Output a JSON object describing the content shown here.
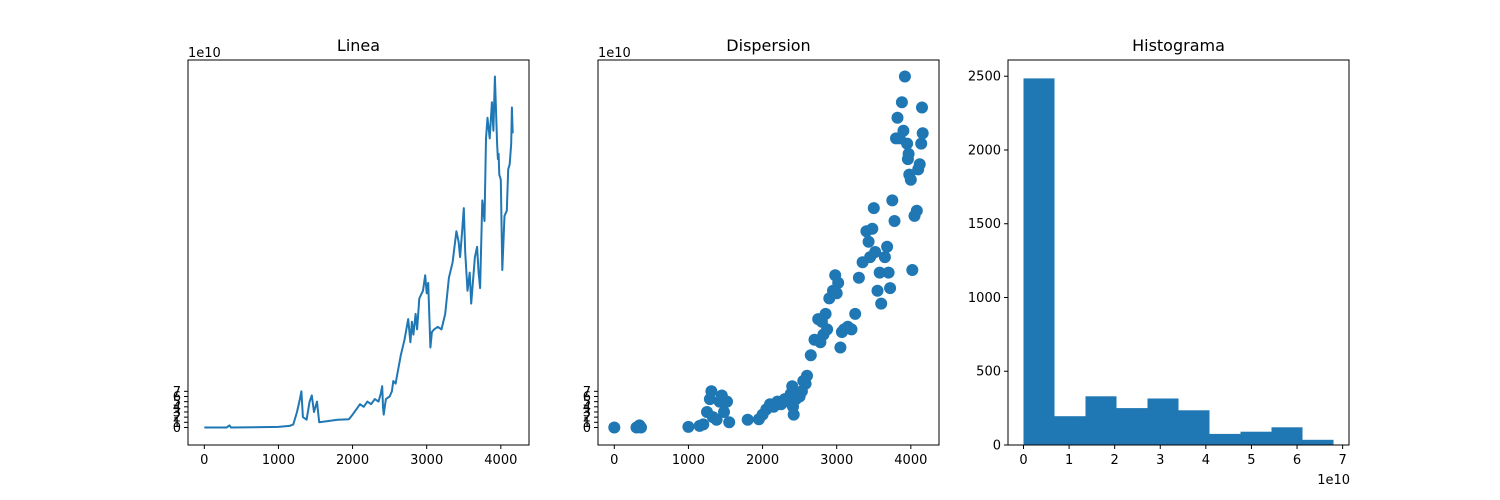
{
  "colors": {
    "series": "#1f77b4",
    "axis": "#000000",
    "background": "#ffffff"
  },
  "chart_data": [
    {
      "type": "line",
      "title": "Linea",
      "xlabel": "",
      "ylabel": "",
      "xlim": [
        -220,
        4380
      ],
      "ylim": [
        -3.4,
        71.2
      ],
      "y_offset_label": "1e10",
      "x_ticks": [
        0,
        1000,
        2000,
        3000,
        4000
      ],
      "y_ticks": [
        0,
        1,
        2,
        3,
        4,
        5,
        6,
        7
      ],
      "grid": false,
      "x": [
        0,
        300,
        340,
        360,
        1000,
        1150,
        1200,
        1250,
        1290,
        1310,
        1330,
        1380,
        1420,
        1450,
        1480,
        1520,
        1550,
        1800,
        1950,
        2000,
        2050,
        2100,
        2150,
        2200,
        2250,
        2300,
        2350,
        2380,
        2400,
        2410,
        2420,
        2450,
        2500,
        2530,
        2550,
        2580,
        2600,
        2650,
        2700,
        2750,
        2780,
        2800,
        2820,
        2850,
        2870,
        2900,
        2950,
        2980,
        3000,
        3020,
        3050,
        3070,
        3100,
        3150,
        3200,
        3250,
        3300,
        3350,
        3400,
        3430,
        3450,
        3480,
        3500,
        3520,
        3550,
        3580,
        3600,
        3650,
        3680,
        3700,
        3720,
        3750,
        3780,
        3800,
        3820,
        3850,
        3880,
        3900,
        3920,
        3950,
        3960,
        3970,
        3980,
        4000,
        4020,
        4050,
        4080,
        4100,
        4120,
        4140,
        4150,
        4160
      ],
      "y": [
        0.0,
        0.0,
        0.4,
        0.0,
        0.1,
        0.3,
        0.6,
        3.0,
        5.5,
        7.0,
        2.0,
        1.5,
        5.0,
        6.2,
        3.0,
        5.0,
        1.0,
        1.5,
        1.6,
        2.5,
        3.5,
        4.5,
        4.0,
        5.0,
        4.5,
        5.5,
        5.0,
        6.5,
        8.0,
        4.0,
        2.5,
        5.5,
        6.0,
        7.0,
        9.0,
        8.5,
        10.0,
        14.0,
        17.0,
        21.0,
        16.5,
        20.5,
        18.0,
        22.0,
        19.0,
        25.0,
        26.5,
        29.5,
        26.0,
        28.0,
        15.5,
        18.5,
        19.0,
        19.5,
        19.0,
        22.0,
        29.0,
        32.0,
        38.0,
        36.0,
        33.0,
        38.5,
        42.5,
        34.0,
        26.5,
        30.0,
        24.0,
        33.0,
        35.0,
        30.0,
        27.0,
        44.0,
        40.0,
        56.0,
        60.0,
        56.0,
        63.0,
        57.5,
        68.0,
        55.0,
        52.0,
        53.0,
        49.0,
        48.0,
        30.5,
        41.0,
        42.0,
        50.0,
        51.0,
        55.0,
        62.0,
        57.0
      ]
    },
    {
      "type": "scatter",
      "title": "Dispersion",
      "xlabel": "",
      "ylabel": "",
      "xlim": [
        -220,
        4380
      ],
      "ylim": [
        -3.4,
        71.2
      ],
      "y_offset_label": "1e10",
      "x_ticks": [
        0,
        1000,
        2000,
        3000,
        4000
      ],
      "y_ticks": [
        0,
        1,
        2,
        3,
        4,
        5,
        6,
        7
      ],
      "grid": false,
      "x": [
        0,
        300,
        340,
        360,
        1000,
        1150,
        1200,
        1250,
        1290,
        1310,
        1330,
        1380,
        1420,
        1450,
        1480,
        1520,
        1550,
        1800,
        1950,
        2000,
        2050,
        2100,
        2150,
        2200,
        2250,
        2300,
        2350,
        2380,
        2400,
        2410,
        2420,
        2450,
        2500,
        2530,
        2550,
        2580,
        2600,
        2650,
        2700,
        2750,
        2780,
        2800,
        2820,
        2850,
        2870,
        2900,
        2950,
        2980,
        3000,
        3020,
        3050,
        3070,
        3100,
        3150,
        3200,
        3250,
        3300,
        3350,
        3400,
        3430,
        3450,
        3480,
        3500,
        3520,
        3550,
        3580,
        3600,
        3650,
        3680,
        3700,
        3720,
        3750,
        3780,
        3800,
        3820,
        3850,
        3880,
        3900,
        3920,
        3950,
        3960,
        3970,
        3980,
        4000,
        4020,
        4050,
        4080,
        4100,
        4120,
        4140,
        4150,
        4160
      ],
      "y": [
        0.0,
        0.0,
        0.4,
        0.0,
        0.1,
        0.3,
        0.6,
        3.0,
        5.5,
        7.0,
        2.0,
        1.5,
        5.0,
        6.2,
        3.0,
        5.0,
        1.0,
        1.5,
        1.6,
        2.5,
        3.5,
        4.5,
        4.0,
        5.0,
        4.5,
        5.5,
        5.0,
        6.5,
        8.0,
        4.0,
        2.5,
        5.5,
        6.0,
        7.0,
        9.0,
        8.5,
        10.0,
        14.0,
        17.0,
        21.0,
        16.5,
        20.5,
        18.0,
        22.0,
        19.0,
        25.0,
        26.5,
        29.5,
        26.0,
        28.0,
        15.5,
        18.5,
        19.0,
        19.5,
        19.0,
        22.0,
        29.0,
        32.0,
        38.0,
        36.0,
        33.0,
        38.5,
        42.5,
        34.0,
        26.5,
        30.0,
        24.0,
        33.0,
        35.0,
        30.0,
        27.0,
        44.0,
        40.0,
        56.0,
        60.0,
        56.0,
        63.0,
        57.5,
        68.0,
        55.0,
        52.0,
        53.0,
        49.0,
        48.0,
        30.5,
        41.0,
        42.0,
        50.0,
        51.0,
        55.0,
        62.0,
        57.0
      ]
    },
    {
      "type": "bar",
      "title": "Histograma",
      "xlabel": "",
      "ylabel": "",
      "xlim": [
        -0.34,
        7.14
      ],
      "ylim": [
        0,
        2610
      ],
      "x_offset_label": "1e10",
      "x_ticks": [
        0,
        1,
        2,
        3,
        4,
        5,
        6,
        7
      ],
      "y_ticks": [
        0,
        500,
        1000,
        1500,
        2000,
        2500
      ],
      "grid": false,
      "bin_edges": [
        0.0,
        0.68,
        1.36,
        2.04,
        2.72,
        3.4,
        4.08,
        4.76,
        5.44,
        6.12,
        6.8
      ],
      "values": [
        2485,
        195,
        330,
        250,
        315,
        235,
        75,
        90,
        120,
        35
      ]
    }
  ]
}
